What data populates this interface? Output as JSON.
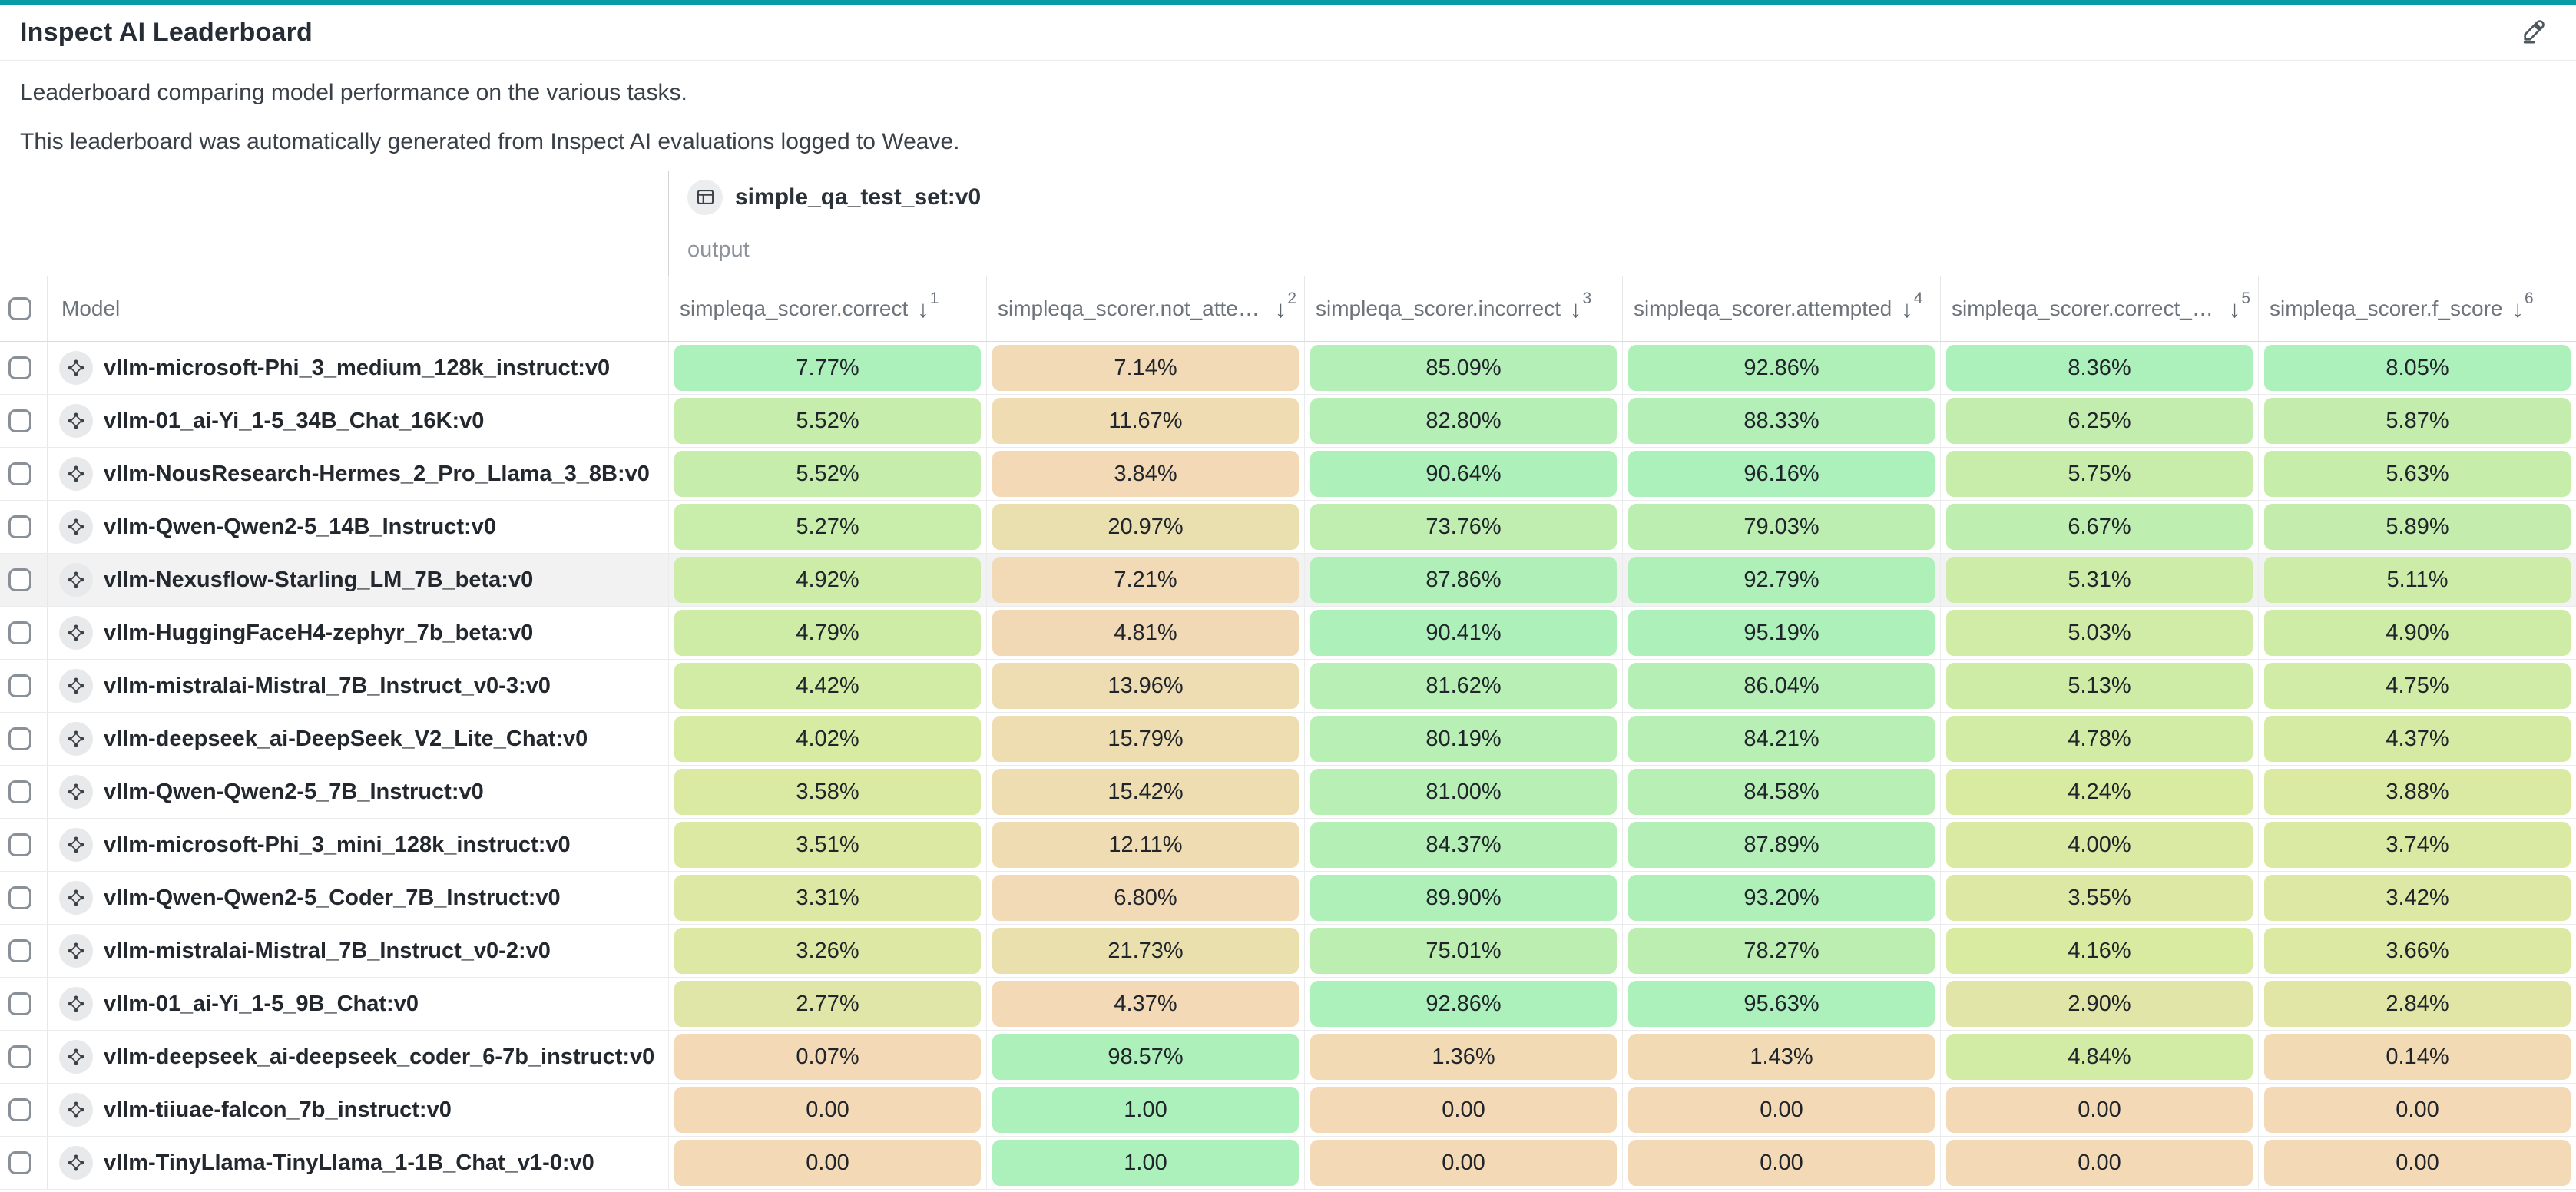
{
  "page": {
    "title": "Inspect AI Leaderboard",
    "description_line1": "Leaderboard comparing model performance on the various tasks.",
    "description_line2": "This leaderboard was automatically generated from Inspect AI evaluations logged to Weave."
  },
  "colors": {
    "accent_teal": "#0a9ba4",
    "grade_low": "#f3d9b6",
    "grade_mid": "#d9eba1",
    "grade_high": "#acf0bb",
    "row_highlight": "#f2f2f3"
  },
  "table": {
    "group_header": {
      "label": "simple_qa_test_set:v0"
    },
    "subgroup_label": "output",
    "model_column_label": "Model",
    "columns": [
      {
        "label": "simpleqa_scorer.correct",
        "sort_order": "1"
      },
      {
        "label": "simpleqa_scorer.not_attem...",
        "sort_order": "2"
      },
      {
        "label": "simpleqa_scorer.incorrect",
        "sort_order": "3"
      },
      {
        "label": "simpleqa_scorer.attempted",
        "sort_order": "4"
      },
      {
        "label": "simpleqa_scorer.correct_giv...",
        "sort_order": "5"
      },
      {
        "label": "simpleqa_scorer.f_score",
        "sort_order": "6"
      }
    ],
    "rows": [
      {
        "model": "vllm-microsoft-Phi_3_medium_128k_instruct:v0",
        "highlighted": false,
        "cells": [
          {
            "text": "7.77%",
            "value": 0.0777
          },
          {
            "text": "7.14%",
            "value": 0.0714
          },
          {
            "text": "85.09%",
            "value": 0.8509
          },
          {
            "text": "92.86%",
            "value": 0.9286
          },
          {
            "text": "8.36%",
            "value": 0.0836
          },
          {
            "text": "8.05%",
            "value": 0.0805
          }
        ]
      },
      {
        "model": "vllm-01_ai-Yi_1-5_34B_Chat_16K:v0",
        "highlighted": false,
        "cells": [
          {
            "text": "5.52%",
            "value": 0.0552
          },
          {
            "text": "11.67%",
            "value": 0.1167
          },
          {
            "text": "82.80%",
            "value": 0.828
          },
          {
            "text": "88.33%",
            "value": 0.8833
          },
          {
            "text": "6.25%",
            "value": 0.0625
          },
          {
            "text": "5.87%",
            "value": 0.0587
          }
        ]
      },
      {
        "model": "vllm-NousResearch-Hermes_2_Pro_Llama_3_8B:v0",
        "highlighted": false,
        "cells": [
          {
            "text": "5.52%",
            "value": 0.0552
          },
          {
            "text": "3.84%",
            "value": 0.0384
          },
          {
            "text": "90.64%",
            "value": 0.9064
          },
          {
            "text": "96.16%",
            "value": 0.9616
          },
          {
            "text": "5.75%",
            "value": 0.0575
          },
          {
            "text": "5.63%",
            "value": 0.0563
          }
        ]
      },
      {
        "model": "vllm-Qwen-Qwen2-5_14B_Instruct:v0",
        "highlighted": false,
        "cells": [
          {
            "text": "5.27%",
            "value": 0.0527
          },
          {
            "text": "20.97%",
            "value": 0.2097
          },
          {
            "text": "73.76%",
            "value": 0.7376
          },
          {
            "text": "79.03%",
            "value": 0.7903
          },
          {
            "text": "6.67%",
            "value": 0.0667
          },
          {
            "text": "5.89%",
            "value": 0.0589
          }
        ]
      },
      {
        "model": "vllm-Nexusflow-Starling_LM_7B_beta:v0",
        "highlighted": true,
        "cells": [
          {
            "text": "4.92%",
            "value": 0.0492
          },
          {
            "text": "7.21%",
            "value": 0.0721
          },
          {
            "text": "87.86%",
            "value": 0.8786
          },
          {
            "text": "92.79%",
            "value": 0.9279
          },
          {
            "text": "5.31%",
            "value": 0.0531
          },
          {
            "text": "5.11%",
            "value": 0.0511
          }
        ]
      },
      {
        "model": "vllm-HuggingFaceH4-zephyr_7b_beta:v0",
        "highlighted": false,
        "cells": [
          {
            "text": "4.79%",
            "value": 0.0479
          },
          {
            "text": "4.81%",
            "value": 0.0481
          },
          {
            "text": "90.41%",
            "value": 0.9041
          },
          {
            "text": "95.19%",
            "value": 0.9519
          },
          {
            "text": "5.03%",
            "value": 0.0503
          },
          {
            "text": "4.90%",
            "value": 0.049
          }
        ]
      },
      {
        "model": "vllm-mistralai-Mistral_7B_Instruct_v0-3:v0",
        "highlighted": false,
        "cells": [
          {
            "text": "4.42%",
            "value": 0.0442
          },
          {
            "text": "13.96%",
            "value": 0.1396
          },
          {
            "text": "81.62%",
            "value": 0.8162
          },
          {
            "text": "86.04%",
            "value": 0.8604
          },
          {
            "text": "5.13%",
            "value": 0.0513
          },
          {
            "text": "4.75%",
            "value": 0.0475
          }
        ]
      },
      {
        "model": "vllm-deepseek_ai-DeepSeek_V2_Lite_Chat:v0",
        "highlighted": false,
        "cells": [
          {
            "text": "4.02%",
            "value": 0.0402
          },
          {
            "text": "15.79%",
            "value": 0.1579
          },
          {
            "text": "80.19%",
            "value": 0.8019
          },
          {
            "text": "84.21%",
            "value": 0.8421
          },
          {
            "text": "4.78%",
            "value": 0.0478
          },
          {
            "text": "4.37%",
            "value": 0.0437
          }
        ]
      },
      {
        "model": "vllm-Qwen-Qwen2-5_7B_Instruct:v0",
        "highlighted": false,
        "cells": [
          {
            "text": "3.58%",
            "value": 0.0358
          },
          {
            "text": "15.42%",
            "value": 0.1542
          },
          {
            "text": "81.00%",
            "value": 0.81
          },
          {
            "text": "84.58%",
            "value": 0.8458
          },
          {
            "text": "4.24%",
            "value": 0.0424
          },
          {
            "text": "3.88%",
            "value": 0.0388
          }
        ]
      },
      {
        "model": "vllm-microsoft-Phi_3_mini_128k_instruct:v0",
        "highlighted": false,
        "cells": [
          {
            "text": "3.51%",
            "value": 0.0351
          },
          {
            "text": "12.11%",
            "value": 0.1211
          },
          {
            "text": "84.37%",
            "value": 0.8437
          },
          {
            "text": "87.89%",
            "value": 0.8789
          },
          {
            "text": "4.00%",
            "value": 0.04
          },
          {
            "text": "3.74%",
            "value": 0.0374
          }
        ]
      },
      {
        "model": "vllm-Qwen-Qwen2-5_Coder_7B_Instruct:v0",
        "highlighted": false,
        "cells": [
          {
            "text": "3.31%",
            "value": 0.0331
          },
          {
            "text": "6.80%",
            "value": 0.068
          },
          {
            "text": "89.90%",
            "value": 0.899
          },
          {
            "text": "93.20%",
            "value": 0.932
          },
          {
            "text": "3.55%",
            "value": 0.0355
          },
          {
            "text": "3.42%",
            "value": 0.0342
          }
        ]
      },
      {
        "model": "vllm-mistralai-Mistral_7B_Instruct_v0-2:v0",
        "highlighted": false,
        "cells": [
          {
            "text": "3.26%",
            "value": 0.0326
          },
          {
            "text": "21.73%",
            "value": 0.2173
          },
          {
            "text": "75.01%",
            "value": 0.7501
          },
          {
            "text": "78.27%",
            "value": 0.7827
          },
          {
            "text": "4.16%",
            "value": 0.0416
          },
          {
            "text": "3.66%",
            "value": 0.0366
          }
        ]
      },
      {
        "model": "vllm-01_ai-Yi_1-5_9B_Chat:v0",
        "highlighted": false,
        "cells": [
          {
            "text": "2.77%",
            "value": 0.0277
          },
          {
            "text": "4.37%",
            "value": 0.0437
          },
          {
            "text": "92.86%",
            "value": 0.9286
          },
          {
            "text": "95.63%",
            "value": 0.9563
          },
          {
            "text": "2.90%",
            "value": 0.029
          },
          {
            "text": "2.84%",
            "value": 0.0284
          }
        ]
      },
      {
        "model": "vllm-deepseek_ai-deepseek_coder_6-7b_instruct:v0",
        "highlighted": false,
        "cells": [
          {
            "text": "0.07%",
            "value": 0.0007
          },
          {
            "text": "98.57%",
            "value": 0.9857
          },
          {
            "text": "1.36%",
            "value": 0.0136
          },
          {
            "text": "1.43%",
            "value": 0.0143
          },
          {
            "text": "4.84%",
            "value": 0.0484
          },
          {
            "text": "0.14%",
            "value": 0.0014
          }
        ]
      },
      {
        "model": "vllm-tiiuae-falcon_7b_instruct:v0",
        "highlighted": false,
        "cells": [
          {
            "text": "0.00",
            "value": 0
          },
          {
            "text": "1.00",
            "value": 1
          },
          {
            "text": "0.00",
            "value": 0
          },
          {
            "text": "0.00",
            "value": 0
          },
          {
            "text": "0.00",
            "value": 0
          },
          {
            "text": "0.00",
            "value": 0
          }
        ]
      },
      {
        "model": "vllm-TinyLlama-TinyLlama_1-1B_Chat_v1-0:v0",
        "highlighted": false,
        "cells": [
          {
            "text": "0.00",
            "value": 0
          },
          {
            "text": "1.00",
            "value": 1
          },
          {
            "text": "0.00",
            "value": 0
          },
          {
            "text": "0.00",
            "value": 0
          },
          {
            "text": "0.00",
            "value": 0
          },
          {
            "text": "0.00",
            "value": 0
          }
        ]
      }
    ]
  }
}
